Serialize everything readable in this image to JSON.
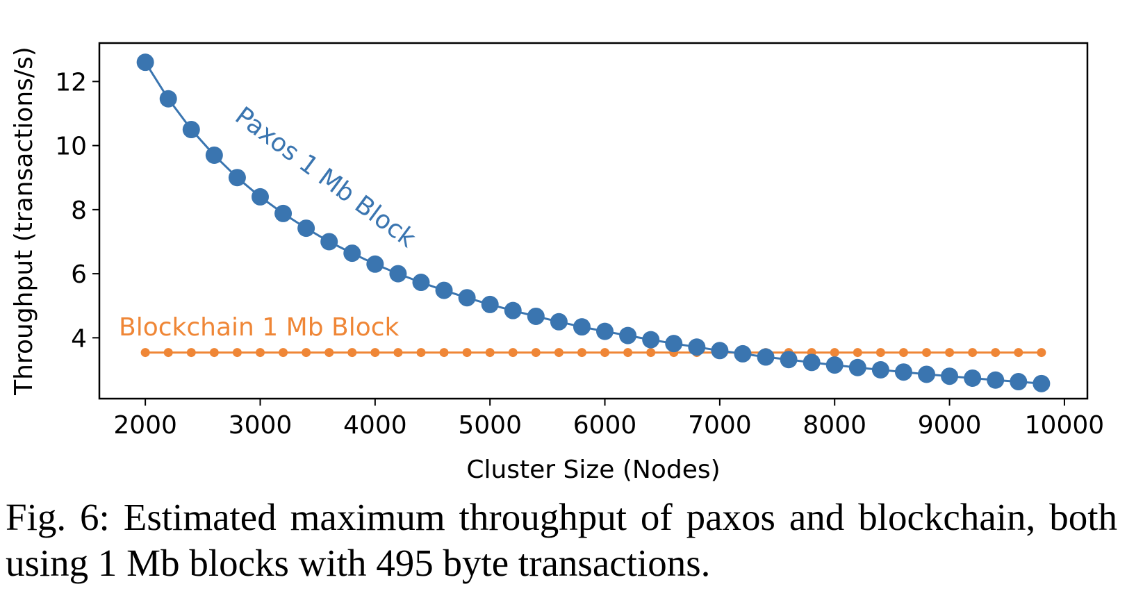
{
  "chart_data": {
    "type": "line",
    "title": "",
    "xlabel": "Cluster Size (Nodes)",
    "ylabel": "Throughput (transactions/s)",
    "xlim": [
      1600,
      10200
    ],
    "ylim": [
      2.1,
      13.2
    ],
    "xticks": [
      2000,
      3000,
      4000,
      5000,
      6000,
      7000,
      8000,
      9000,
      10000
    ],
    "yticks": [
      4,
      6,
      8,
      10,
      12
    ],
    "grid": false,
    "legend": "none",
    "x": [
      2000,
      2200,
      2400,
      2600,
      2800,
      3000,
      3200,
      3400,
      3600,
      3800,
      4000,
      4200,
      4400,
      4600,
      4800,
      5000,
      5200,
      5400,
      5600,
      5800,
      6000,
      6200,
      6400,
      6600,
      6800,
      7000,
      7200,
      7400,
      7600,
      7800,
      8000,
      8200,
      8400,
      8600,
      8800,
      9000,
      9200,
      9400,
      9600,
      9800
    ],
    "series": [
      {
        "name": "Paxos 1 Mb Block",
        "color": "#3a75b0",
        "values": [
          12.6,
          11.46,
          10.5,
          9.7,
          9.0,
          8.4,
          7.88,
          7.42,
          7.0,
          6.64,
          6.3,
          6.0,
          5.73,
          5.48,
          5.25,
          5.04,
          4.85,
          4.67,
          4.5,
          4.34,
          4.2,
          4.07,
          3.94,
          3.82,
          3.71,
          3.6,
          3.5,
          3.4,
          3.32,
          3.23,
          3.15,
          3.07,
          3.0,
          2.93,
          2.86,
          2.8,
          2.74,
          2.68,
          2.63,
          2.57
        ]
      },
      {
        "name": "Blockchain 1 Mb Block",
        "color": "#ef8636",
        "values": [
          3.54,
          3.54,
          3.54,
          3.54,
          3.54,
          3.54,
          3.54,
          3.54,
          3.54,
          3.54,
          3.54,
          3.54,
          3.54,
          3.54,
          3.54,
          3.54,
          3.54,
          3.54,
          3.54,
          3.54,
          3.54,
          3.54,
          3.54,
          3.54,
          3.54,
          3.54,
          3.54,
          3.54,
          3.54,
          3.54,
          3.54,
          3.54,
          3.54,
          3.54,
          3.54,
          3.54,
          3.54,
          3.54,
          3.54,
          3.54
        ]
      }
    ]
  },
  "caption": "Fig. 6: Estimated maximum throughput of paxos and blockchain, both using 1 Mb blocks with 495 byte transactions."
}
